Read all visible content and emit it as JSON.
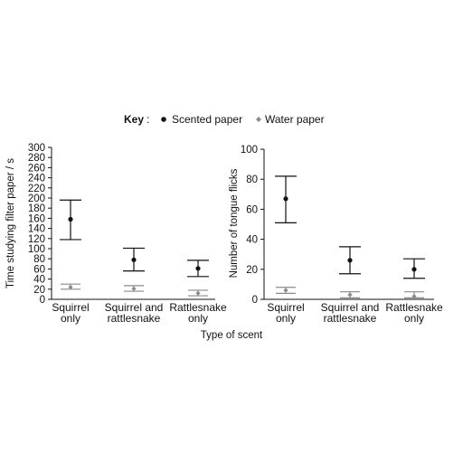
{
  "key": {
    "title": "Key",
    "colon": ":",
    "scented_label": "Scented paper",
    "water_label": "Water paper",
    "scented_color": "#111111",
    "water_color": "#8a8a8a"
  },
  "shared_xlabel": "Type of scent",
  "chart_data": [
    {
      "type": "scatter",
      "ylabel": "Time studying filter paper / s",
      "ylim": [
        0,
        300
      ],
      "yticks": [
        0,
        20,
        40,
        60,
        80,
        100,
        120,
        140,
        160,
        180,
        200,
        220,
        240,
        260,
        280,
        300
      ],
      "categories": [
        [
          "Squirrel",
          "only"
        ],
        [
          "Squirrel and",
          "rattlesnake"
        ],
        [
          "Rattlesnake",
          "only"
        ]
      ],
      "series": [
        {
          "name": "Scented paper",
          "values": [
            158,
            78,
            61
          ],
          "lower": [
            118,
            56,
            45
          ],
          "upper": [
            196,
            101,
            77
          ]
        },
        {
          "name": "Water paper",
          "values": [
            24,
            21,
            12
          ],
          "lower": [
            20,
            16,
            7
          ],
          "upper": [
            30,
            27,
            18
          ]
        }
      ]
    },
    {
      "type": "scatter",
      "ylabel": "Number of tongue flicks",
      "ylim": [
        0,
        100
      ],
      "yticks": [
        0,
        20,
        40,
        60,
        80,
        100
      ],
      "categories": [
        [
          "Squirrel",
          "only"
        ],
        [
          "Squirrel and",
          "rattlesnake"
        ],
        [
          "Rattlesnake",
          "only"
        ]
      ],
      "series": [
        {
          "name": "Scented paper",
          "values": [
            67,
            26,
            20
          ],
          "lower": [
            51,
            17,
            14
          ],
          "upper": [
            82,
            35,
            27
          ]
        },
        {
          "name": "Water paper",
          "values": [
            6,
            3,
            2
          ],
          "lower": [
            4,
            1,
            1
          ],
          "upper": [
            8,
            5,
            5
          ]
        }
      ]
    }
  ]
}
